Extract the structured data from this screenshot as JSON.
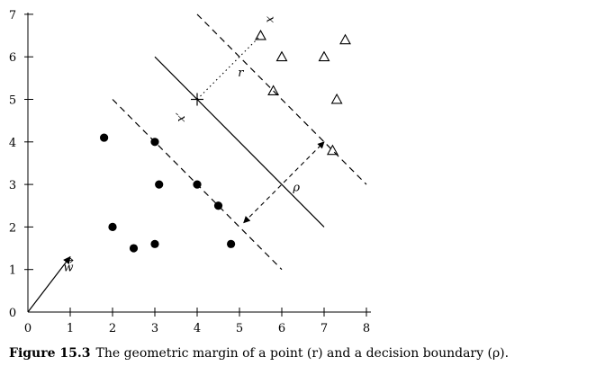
{
  "caption": {
    "figure_number": "Figure 15.3",
    "text": "The geometric margin of a point (r) and a decision boundary (ρ)."
  },
  "chart_data": {
    "type": "scatter",
    "title": "",
    "xlabel": "",
    "ylabel": "",
    "xlim": [
      0,
      8
    ],
    "ylim": [
      0,
      7
    ],
    "x_ticks": [
      "0",
      "1",
      "2",
      "3",
      "4",
      "5",
      "6",
      "7",
      "8"
    ],
    "y_ticks": [
      "0",
      "1",
      "2",
      "3",
      "4",
      "5",
      "6",
      "7"
    ],
    "grid": false,
    "series": [
      {
        "marker": "filled-circle",
        "points": [
          [
            1.8,
            4.1
          ],
          [
            2.0,
            2.0
          ],
          [
            2.5,
            1.5
          ],
          [
            3.0,
            4.0
          ],
          [
            3.1,
            3.0
          ],
          [
            3.0,
            1.6
          ],
          [
            4.0,
            3.0
          ],
          [
            4.5,
            2.5
          ],
          [
            4.8,
            1.6
          ]
        ]
      },
      {
        "marker": "open-triangle",
        "points": [
          [
            5.5,
            6.5
          ],
          [
            6.0,
            6.0
          ],
          [
            7.0,
            6.0
          ],
          [
            7.5,
            6.4
          ],
          [
            5.8,
            5.2
          ],
          [
            7.3,
            5.0
          ],
          [
            7.2,
            3.8
          ]
        ]
      }
    ],
    "lines": [
      {
        "role": "decision-boundary",
        "style": "solid",
        "from": [
          3.0,
          6.0
        ],
        "to": [
          7.0,
          2.0
        ]
      },
      {
        "role": "margin-upper",
        "style": "dashed",
        "from": [
          4.0,
          7.0
        ],
        "to": [
          8.0,
          3.0
        ]
      },
      {
        "role": "margin-lower",
        "style": "dashed",
        "from": [
          2.0,
          5.0
        ],
        "to": [
          6.0,
          1.0
        ]
      }
    ],
    "margin_vectors": [
      {
        "label": "r",
        "style": "dotted",
        "from": [
          4.0,
          5.0
        ],
        "to": [
          5.5,
          6.5
        ]
      },
      {
        "label": "ρ",
        "style": "dashed-double-arrow",
        "from": [
          5.1,
          2.1
        ],
        "to": [
          7.0,
          4.0
        ]
      }
    ],
    "weight_vector": {
      "label": "w",
      "from": [
        0.0,
        0.0
      ],
      "to": [
        1.0,
        1.3
      ]
    },
    "marked_points": [
      {
        "label": "x",
        "at": [
          5.5,
          6.5
        ],
        "label_pos": "above-right"
      },
      {
        "label": "x′",
        "at": [
          4.0,
          5.0
        ],
        "label_pos": "below-left"
      }
    ]
  }
}
